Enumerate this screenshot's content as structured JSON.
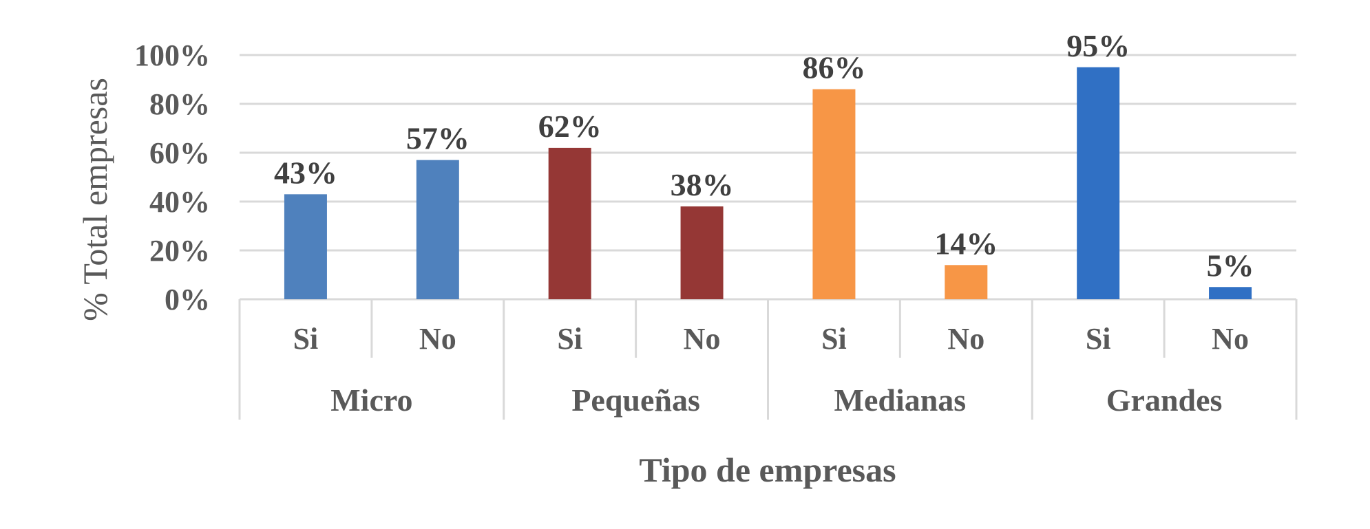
{
  "chart_data": {
    "type": "bar",
    "ylabel": "% Total empresas",
    "xlabel": "Tipo de empresas",
    "ylim": [
      0,
      100
    ],
    "y_ticks": [
      "0%",
      "20%",
      "40%",
      "60%",
      "80%",
      "100%"
    ],
    "grid": true,
    "legend": "none",
    "groups": [
      {
        "name": "Micro",
        "color": "#4f81bd",
        "bars": [
          {
            "category": "Si",
            "value": 43,
            "label": "43%"
          },
          {
            "category": "No",
            "value": 57,
            "label": "57%"
          }
        ]
      },
      {
        "name": "Pequeñas",
        "color": "#953735",
        "bars": [
          {
            "category": "Si",
            "value": 62,
            "label": "62%"
          },
          {
            "category": "No",
            "value": 38,
            "label": "38%"
          }
        ]
      },
      {
        "name": "Medianas",
        "color": "#f79646",
        "bars": [
          {
            "category": "Si",
            "value": 86,
            "label": "86%"
          },
          {
            "category": "No",
            "value": 14,
            "label": "14%"
          }
        ]
      },
      {
        "name": "Grandes",
        "color": "#3070c4",
        "bars": [
          {
            "category": "Si",
            "value": 95,
            "label": "95%"
          },
          {
            "category": "No",
            "value": 5,
            "label": "5%"
          }
        ]
      }
    ]
  }
}
